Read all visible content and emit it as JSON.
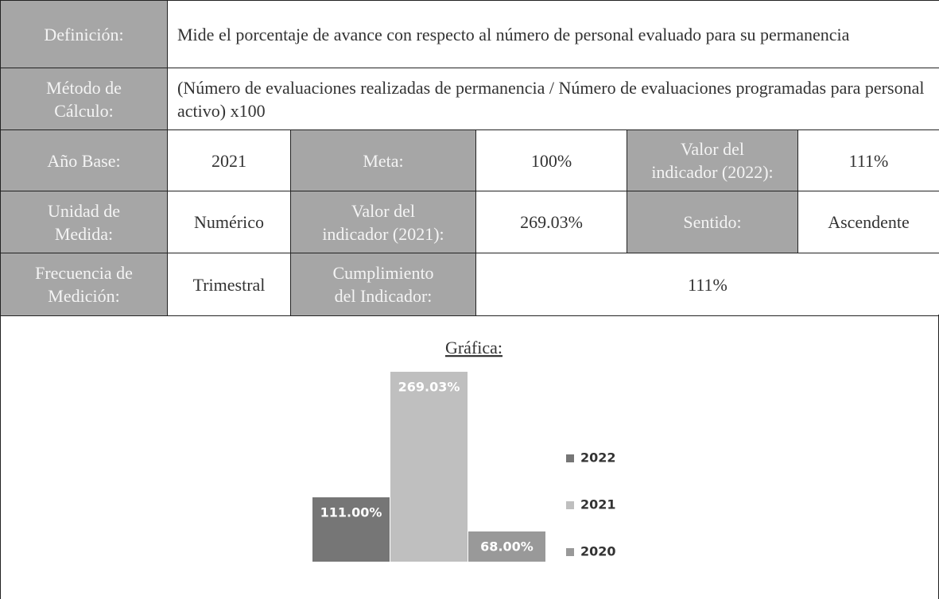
{
  "table": {
    "rows": [
      [
        "Definición:",
        "Mide el porcentaje de avance con respecto al número de personal evaluado para su permanencia"
      ],
      [
        "Método de\nCálculo:",
        "(Número de evaluaciones realizadas de permanencia / Número de evaluaciones programadas para personal activo) x100"
      ],
      [
        "Año Base:",
        "2021",
        "Meta:",
        "100%",
        "Valor del\nindicador (2022):",
        "111%"
      ],
      [
        "Unidad de\nMedida:",
        "Numérico",
        "Valor del\nindicador (2021):",
        "269.03%",
        "Sentido:",
        "Ascendente"
      ],
      [
        "Frecuencia de\nMedición:",
        "Trimestral",
        "Cumplimiento\ndel Indicador:",
        "111%"
      ]
    ]
  },
  "chart_data": {
    "type": "bar",
    "title": "Gráfica:",
    "series": [
      {
        "name": "2022",
        "color": "#767676",
        "values": [
          111
        ],
        "value_labels": [
          "111.00%"
        ]
      },
      {
        "name": "2021",
        "color": "#bfbfbf",
        "values": [
          269.03
        ],
        "value_labels": [
          "269.03%"
        ]
      },
      {
        "name": "2020",
        "color": "#999999",
        "values": [
          68
        ],
        "value_labels": [
          "68.00%"
        ]
      }
    ],
    "ylim": [
      30,
      270
    ],
    "legend": "right"
  }
}
